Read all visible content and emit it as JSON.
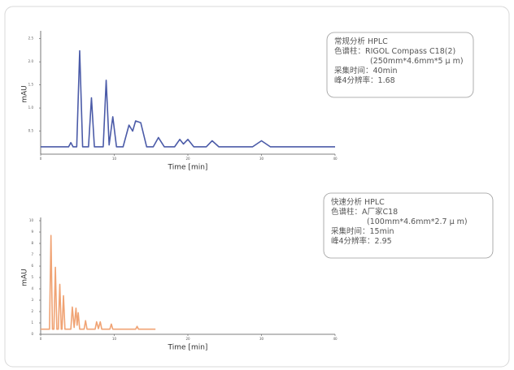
{
  "chart_data": [
    {
      "type": "line",
      "y_label": "mAU",
      "x_label": "Time [min]",
      "xlim": [
        0,
        40
      ],
      "xticks": [
        0,
        10,
        20,
        30,
        40
      ],
      "ylim": [
        0,
        2.6
      ],
      "yticks": [
        {
          "value": 0.5,
          "label": "0.5"
        },
        {
          "value": 1,
          "label": "1.0"
        },
        {
          "value": 1.5,
          "label": "1.5"
        },
        {
          "value": 2,
          "label": "2.0"
        },
        {
          "value": 2.5,
          "label": "2.5"
        }
      ],
      "x": [
        0,
        3.8,
        4.1,
        4.4,
        4.9,
        5.3,
        5.7,
        6.5,
        6.9,
        7.3,
        8.5,
        8.9,
        9.3,
        9.8,
        10.3,
        11.2,
        12.0,
        12.5,
        12.9,
        13.6,
        14.4,
        15.3,
        16.0,
        16.8,
        18.2,
        18.9,
        19.4,
        20.0,
        20.8,
        22.5,
        23.3,
        24.2,
        28.8,
        30.0,
        31.2,
        40
      ],
      "values": [
        0.16,
        0.16,
        0.25,
        0.16,
        0.16,
        2.24,
        0.16,
        0.16,
        1.22,
        0.16,
        0.16,
        1.6,
        0.2,
        0.81,
        0.16,
        0.16,
        0.63,
        0.5,
        0.72,
        0.68,
        0.16,
        0.16,
        0.36,
        0.16,
        0.16,
        0.32,
        0.22,
        0.32,
        0.16,
        0.16,
        0.29,
        0.16,
        0.16,
        0.29,
        0.16,
        0.16
      ],
      "color": "#4b5ba8",
      "annotation": [
        "常规分析 HPLC",
        "色谱柱：RIGOL Compass C18(2)",
        "(250mm*4.6mm*5 μ m)",
        "采集时间：40min",
        "峰4分辨率：1.68"
      ]
    },
    {
      "type": "line",
      "y_label": "mAU",
      "x_label": "Time [min]",
      "xlim": [
        0,
        40
      ],
      "xticks": [
        0,
        10,
        20,
        30,
        40
      ],
      "ylim": [
        0,
        10
      ],
      "yticks": [
        0,
        1,
        2,
        3,
        4,
        5,
        6,
        7,
        8,
        9,
        10
      ],
      "x": [
        0,
        1.2,
        1.4,
        1.6,
        1.8,
        2.0,
        2.2,
        2.4,
        2.6,
        2.8,
        2.9,
        3.1,
        3.3,
        4.1,
        4.3,
        4.55,
        4.8,
        4.95,
        5.1,
        5.3,
        5.9,
        6.1,
        6.3,
        7.4,
        7.6,
        7.85,
        8.1,
        8.3,
        9.4,
        9.6,
        9.8,
        12.9,
        13.1,
        13.3,
        15.6
      ],
      "values": [
        0.45,
        0.45,
        8.7,
        0.45,
        0.45,
        5.9,
        0.45,
        0.45,
        4.4,
        0.45,
        0.45,
        3.4,
        0.45,
        0.45,
        2.4,
        0.6,
        2.3,
        0.8,
        1.9,
        0.45,
        0.45,
        1.2,
        0.45,
        0.45,
        1.1,
        0.5,
        1.1,
        0.45,
        0.45,
        0.9,
        0.45,
        0.45,
        0.7,
        0.45,
        0.45
      ],
      "color": "#f0a374",
      "annotation": [
        "快速分析 HPLC",
        "色谱柱：A厂家C18",
        "(100mm*4.6mm*2.7 μ m)",
        "采集时间：15min",
        "峰4分辨率：2.95"
      ]
    }
  ]
}
